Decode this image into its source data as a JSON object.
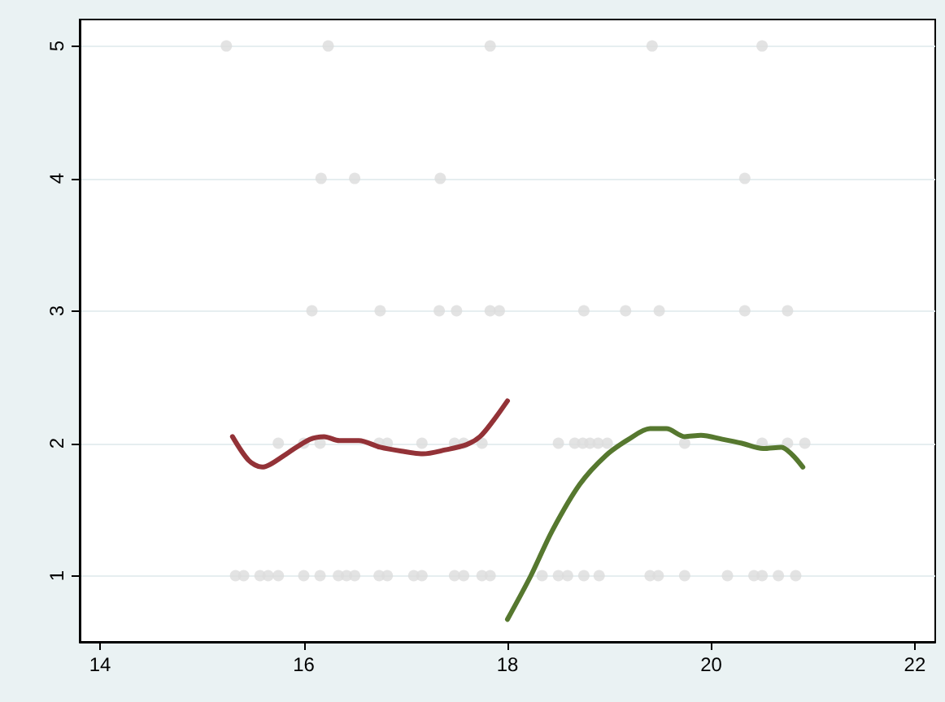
{
  "chart_data": {
    "type": "scatter",
    "xlim": [
      13.8,
      22.2
    ],
    "ylim": [
      0.5,
      5.2
    ],
    "xticks": [
      14,
      16,
      18,
      20,
      22
    ],
    "yticks": [
      1,
      2,
      3,
      4,
      5
    ],
    "grid": "y",
    "series": [
      {
        "marker": "circle",
        "color": "#dcdcdc",
        "x": [
          15.24,
          16.24,
          17.83,
          19.42,
          20.5,
          16.17,
          16.5,
          17.34,
          20.33,
          16.08,
          16.75,
          17.33,
          17.5,
          17.83,
          17.92,
          18.75,
          19.16,
          19.49,
          20.33,
          20.75,
          15.75,
          16.0,
          16.16,
          16.74,
          16.82,
          17.16,
          17.48,
          17.57,
          17.75,
          18.5,
          18.66,
          18.74,
          18.81,
          18.89,
          18.98,
          19.74,
          20.5,
          20.75,
          20.92,
          15.33,
          15.41,
          15.57,
          15.65,
          15.75,
          16.0,
          16.16,
          16.34,
          16.42,
          16.5,
          16.74,
          16.82,
          17.08,
          17.16,
          17.48,
          17.57,
          17.75,
          17.83,
          18.34,
          18.5,
          18.59,
          18.75,
          18.9,
          19.4,
          19.48,
          19.74,
          20.16,
          20.42,
          20.5,
          20.66,
          20.83
        ],
        "values": [
          5,
          5,
          5,
          5,
          5,
          4,
          4,
          4,
          4,
          3,
          3,
          3,
          3,
          3,
          3,
          3,
          3,
          3,
          3,
          3,
          2,
          2,
          2,
          2,
          2,
          2,
          2,
          2,
          2,
          2,
          2,
          2,
          2,
          2,
          2,
          2,
          2,
          2,
          2,
          1,
          1,
          1,
          1,
          1,
          1,
          1,
          1,
          1,
          1,
          1,
          1,
          1,
          1,
          1,
          1,
          1,
          1,
          1,
          1,
          1,
          1,
          1,
          1,
          1,
          1,
          1,
          1,
          1,
          1,
          1
        ]
      },
      {
        "type": "line",
        "marker": "none",
        "color": "#933237",
        "x": [
          15.3,
          15.46,
          15.59,
          15.67,
          15.85,
          16.06,
          16.2,
          16.35,
          16.54,
          16.75,
          16.96,
          17.17,
          17.39,
          17.6,
          17.73,
          17.86,
          18.0
        ],
        "values": [
          2.05,
          1.87,
          1.82,
          1.84,
          1.93,
          2.03,
          2.05,
          2.02,
          2.02,
          1.97,
          1.94,
          1.92,
          1.95,
          1.99,
          2.05,
          2.17,
          2.32
        ]
      },
      {
        "type": "line",
        "marker": "none",
        "color": "#56782f",
        "x": [
          18.0,
          18.23,
          18.44,
          18.71,
          18.97,
          19.19,
          19.4,
          19.56,
          19.74,
          19.9,
          20.11,
          20.3,
          20.51,
          20.69,
          20.8,
          20.9
        ],
        "values": [
          0.67,
          1.0,
          1.34,
          1.69,
          1.91,
          2.03,
          2.11,
          2.11,
          2.05,
          2.06,
          2.03,
          2.0,
          1.96,
          1.97,
          1.91,
          1.82
        ]
      }
    ]
  }
}
